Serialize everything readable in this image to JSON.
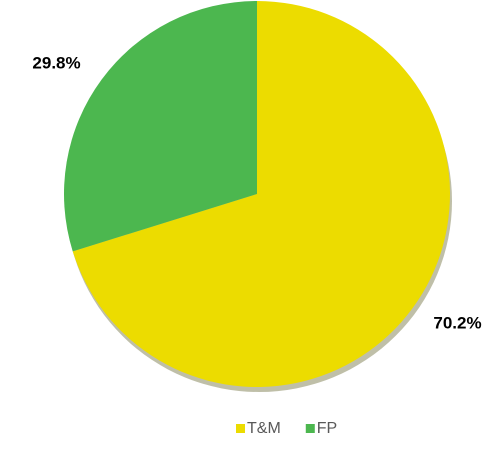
{
  "chart_data": {
    "type": "pie",
    "categories": [
      "T&M",
      "FP"
    ],
    "values": [
      70.2,
      29.8
    ],
    "value_labels": [
      "70.2%",
      "29.8%"
    ],
    "colors": [
      "#ecdc00",
      "#4cb74f"
    ],
    "legend": "bottom"
  }
}
